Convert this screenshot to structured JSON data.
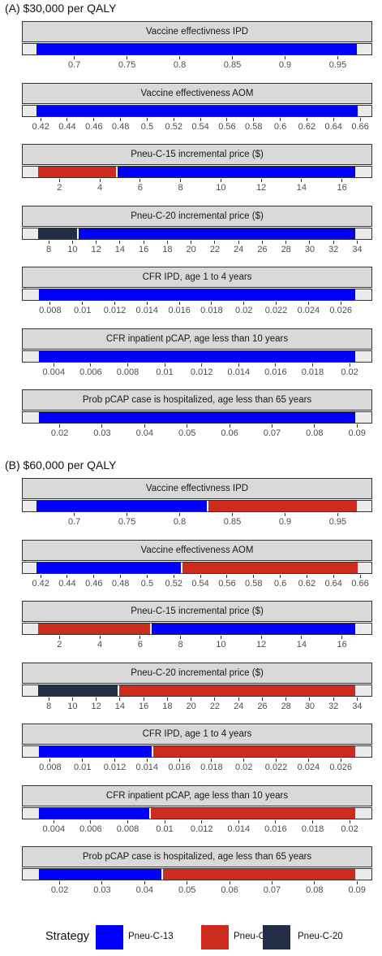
{
  "colors": {
    "Pneu-C-13": "#0000ff",
    "Pneu-C-15": "#cc2b1d",
    "Pneu-C-20": "#232d45"
  },
  "legend": {
    "title": "Strategy",
    "items": [
      "Pneu-C-13",
      "Pneu-C-15",
      "Pneu-C-20"
    ]
  },
  "chart_data": [
    {
      "type": "bar",
      "title": "(A) $30,000 per QALY",
      "facets": [
        {
          "label": "Vaccine effectivness IPD",
          "xlim": [
            0.651,
            0.982
          ],
          "range": [
            0.664,
            0.968
          ],
          "ticks": [
            "0.7",
            "0.75",
            "0.8",
            "0.85",
            "0.9",
            "0.95"
          ],
          "segments": [
            {
              "strategy": "Pneu-C-13",
              "from": 0.664,
              "to": 0.968
            }
          ]
        },
        {
          "label": "Vaccine effectiveness AOM",
          "xlim": [
            0.4065,
            0.6685
          ],
          "range": [
            0.4168,
            0.6581
          ],
          "ticks": [
            "0.42",
            "0.44",
            "0.46",
            "0.48",
            "0.5",
            "0.52",
            "0.54",
            "0.56",
            "0.58",
            "0.6",
            "0.62",
            "0.64",
            "0.66"
          ],
          "segments": [
            {
              "strategy": "Pneu-C-13",
              "from": 0.4168,
              "to": 0.6581
            }
          ]
        },
        {
          "label": "Pneu-C-15 incremental price ($)",
          "xlim": [
            0.18,
            17.46
          ],
          "range": [
            0.94,
            16.66
          ],
          "ticks": [
            "2",
            "4",
            "6",
            "8",
            "10",
            "12",
            "14",
            "16"
          ],
          "segments": [
            {
              "strategy": "Pneu-C-15",
              "from": 0.94,
              "to": 4.83
            },
            {
              "strategy": "Pneu-C-13",
              "from": 4.83,
              "to": 16.66
            }
          ]
        },
        {
          "label": "Pneu-C-20 incremental price ($)",
          "xlim": [
            5.8,
            35.2
          ],
          "range": [
            7.1,
            33.8
          ],
          "ticks": [
            "8",
            "10",
            "12",
            "14",
            "16",
            "18",
            "20",
            "22",
            "24",
            "26",
            "28",
            "30",
            "32",
            "34"
          ],
          "segments": [
            {
              "strategy": "Pneu-C-20",
              "from": 7.1,
              "to": 10.45
            },
            {
              "strategy": "Pneu-C-13",
              "from": 10.45,
              "to": 33.8
            }
          ]
        },
        {
          "label": "CFR IPD, age 1 to 4 years",
          "xlim": [
            0.0063,
            0.0279
          ],
          "range": [
            0.0073,
            0.0269
          ],
          "ticks": [
            "0.008",
            "0.01",
            "0.012",
            "0.014",
            "0.016",
            "0.018",
            "0.02",
            "0.022",
            "0.024",
            "0.026"
          ],
          "segments": [
            {
              "strategy": "Pneu-C-13",
              "from": 0.0073,
              "to": 0.0269
            }
          ]
        },
        {
          "label": "CFR inpatient pCAP, age less than 10 years",
          "xlim": [
            0.00232,
            0.02118
          ],
          "range": [
            0.00318,
            0.02031
          ],
          "ticks": [
            "0.004",
            "0.006",
            "0.008",
            "0.01",
            "0.012",
            "0.014",
            "0.016",
            "0.018",
            "0.02"
          ],
          "segments": [
            {
              "strategy": "Pneu-C-13",
              "from": 0.00318,
              "to": 0.02031
            }
          ]
        },
        {
          "label": "Prob pCAP case is hospitalized, age less than 65 years",
          "xlim": [
            0.0113,
            0.0934
          ],
          "range": [
            0.0151,
            0.0896
          ],
          "ticks": [
            "0.02",
            "0.03",
            "0.04",
            "0.05",
            "0.06",
            "0.07",
            "0.08",
            "0.09"
          ],
          "segments": [
            {
              "strategy": "Pneu-C-13",
              "from": 0.0151,
              "to": 0.0896
            }
          ]
        }
      ]
    },
    {
      "type": "bar",
      "title": "(B) $60,000 per QALY",
      "facets": [
        {
          "label": "Vaccine effectivness IPD",
          "xlim": [
            0.651,
            0.982
          ],
          "range": [
            0.664,
            0.968
          ],
          "ticks": [
            "0.7",
            "0.75",
            "0.8",
            "0.85",
            "0.9",
            "0.95"
          ],
          "segments": [
            {
              "strategy": "Pneu-C-13",
              "from": 0.664,
              "to": 0.8265
            },
            {
              "strategy": "Pneu-C-15",
              "from": 0.8265,
              "to": 0.968
            }
          ]
        },
        {
          "label": "Vaccine effectiveness AOM",
          "xlim": [
            0.4065,
            0.6685
          ],
          "range": [
            0.4168,
            0.6581
          ],
          "ticks": [
            "0.42",
            "0.44",
            "0.46",
            "0.48",
            "0.5",
            "0.52",
            "0.54",
            "0.56",
            "0.58",
            "0.6",
            "0.62",
            "0.64",
            "0.66"
          ],
          "segments": [
            {
              "strategy": "Pneu-C-13",
              "from": 0.4168,
              "to": 0.5257
            },
            {
              "strategy": "Pneu-C-15",
              "from": 0.5257,
              "to": 0.6581
            }
          ]
        },
        {
          "label": "Pneu-C-15 incremental price ($)",
          "xlim": [
            0.18,
            17.46
          ],
          "range": [
            0.94,
            16.66
          ],
          "ticks": [
            "2",
            "4",
            "6",
            "8",
            "10",
            "12",
            "14",
            "16"
          ],
          "segments": [
            {
              "strategy": "Pneu-C-15",
              "from": 0.94,
              "to": 6.51
            },
            {
              "strategy": "Pneu-C-13",
              "from": 6.51,
              "to": 16.66
            }
          ]
        },
        {
          "label": "Pneu-C-20 incremental price ($)",
          "xlim": [
            5.8,
            35.2
          ],
          "range": [
            7.1,
            33.8
          ],
          "ticks": [
            "8",
            "10",
            "12",
            "14",
            "16",
            "18",
            "20",
            "22",
            "24",
            "26",
            "28",
            "30",
            "32",
            "34"
          ],
          "segments": [
            {
              "strategy": "Pneu-C-20",
              "from": 7.1,
              "to": 13.85
            },
            {
              "strategy": "Pneu-C-15",
              "from": 13.85,
              "to": 33.8
            }
          ]
        },
        {
          "label": "CFR IPD, age 1 to 4 years",
          "xlim": [
            0.0063,
            0.0279
          ],
          "range": [
            0.0073,
            0.0269
          ],
          "ticks": [
            "0.008",
            "0.01",
            "0.012",
            "0.014",
            "0.016",
            "0.018",
            "0.02",
            "0.022",
            "0.024",
            "0.026"
          ],
          "segments": [
            {
              "strategy": "Pneu-C-13",
              "from": 0.0073,
              "to": 0.01435
            },
            {
              "strategy": "Pneu-C-15",
              "from": 0.01435,
              "to": 0.0269
            }
          ]
        },
        {
          "label": "CFR inpatient pCAP, age less than 10 years",
          "xlim": [
            0.00232,
            0.02118
          ],
          "range": [
            0.00318,
            0.02031
          ],
          "ticks": [
            "0.004",
            "0.006",
            "0.008",
            "0.01",
            "0.012",
            "0.014",
            "0.016",
            "0.018",
            "0.02"
          ],
          "segments": [
            {
              "strategy": "Pneu-C-13",
              "from": 0.00318,
              "to": 0.0092
            },
            {
              "strategy": "Pneu-C-15",
              "from": 0.0092,
              "to": 0.02031
            }
          ]
        },
        {
          "label": "Prob pCAP case is hospitalized, age less than 65 years",
          "xlim": [
            0.0113,
            0.0934
          ],
          "range": [
            0.0151,
            0.0896
          ],
          "ticks": [
            "0.02",
            "0.03",
            "0.04",
            "0.05",
            "0.06",
            "0.07",
            "0.08",
            "0.09"
          ],
          "segments": [
            {
              "strategy": "Pneu-C-13",
              "from": 0.0151,
              "to": 0.0441
            },
            {
              "strategy": "Pneu-C-15",
              "from": 0.0441,
              "to": 0.0896
            }
          ]
        }
      ]
    }
  ]
}
